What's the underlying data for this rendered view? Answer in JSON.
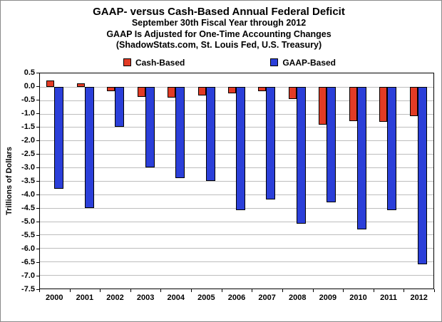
{
  "title": "GAAP- versus Cash-Based Annual Federal Deficit",
  "subtitle1": "September 30th Fiscal Year through 2012",
  "subtitle2": "GAAP Is Adjusted for One-Time Accounting Changes",
  "subtitle3": "(ShadowStats.com, St. Louis Fed, U.S. Treasury)",
  "chart_data": {
    "type": "bar",
    "title": "GAAP- versus Cash-Based Annual Federal Deficit",
    "categories": [
      "2000",
      "2001",
      "2002",
      "2003",
      "2004",
      "2005",
      "2006",
      "2007",
      "2008",
      "2009",
      "2010",
      "2011",
      "2012"
    ],
    "series": [
      {
        "name": "Cash-Based",
        "color": "#e23b25",
        "values": [
          0.24,
          0.13,
          -0.16,
          -0.38,
          -0.41,
          -0.32,
          -0.25,
          -0.16,
          -0.45,
          -1.42,
          -1.29,
          -1.3,
          -1.09
        ]
      },
      {
        "name": "GAAP-Based",
        "color": "#2b3fd9",
        "values": [
          -3.8,
          -4.5,
          -1.5,
          -3.0,
          -3.4,
          -3.5,
          -4.6,
          -4.2,
          -5.1,
          -4.3,
          -5.3,
          -4.6,
          -6.6
        ]
      }
    ],
    "xlabel": "",
    "ylabel": "Trillions of Dollars",
    "ylim": [
      -7.5,
      0.5
    ],
    "ytick_step": 0.5,
    "grid": true,
    "legend_position": "top"
  }
}
